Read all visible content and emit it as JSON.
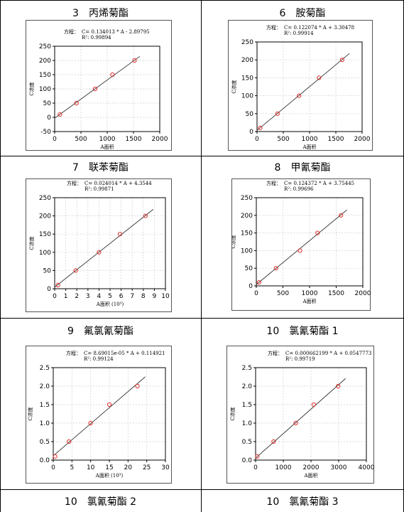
{
  "cells": [
    {
      "title": "3　丙烯菊酯",
      "chart_data": {
        "type": "scatter",
        "equation_prefix": "方程：",
        "equation": "C= 0.134013 * A - 2.89795",
        "r2": "R²: 0.99894",
        "xlabel": "A面积",
        "ylabel": "C浓度",
        "xlim": [
          0,
          2000
        ],
        "ylim": [
          -50,
          250
        ],
        "xticks": [
          0,
          500,
          1000,
          1500,
          2000
        ],
        "yticks": [
          -50,
          0,
          50,
          100,
          150,
          200,
          250
        ],
        "x": [
          100,
          415,
          770,
          1100,
          1520
        ],
        "y": [
          10,
          50,
          100,
          150,
          200
        ],
        "fit": {
          "slope": 0.134013,
          "intercept": -2.89795,
          "x_range": [
            0,
            1620
          ]
        },
        "grid": true
      }
    },
    {
      "title": "6　胺菊酯",
      "chart_data": {
        "type": "scatter",
        "equation_prefix": "方程：",
        "equation": "C= 0.122074 * A + 3.30478",
        "r2": "R²: 0.99914",
        "xlabel": "A面积",
        "ylabel": "C浓度",
        "xlim": [
          0,
          2000
        ],
        "ylim": [
          0,
          250
        ],
        "xticks": [
          0,
          500,
          1000,
          1500,
          2000
        ],
        "yticks": [
          0,
          50,
          100,
          150,
          200,
          250
        ],
        "x": [
          60,
          390,
          800,
          1180,
          1620
        ],
        "y": [
          10,
          50,
          100,
          150,
          200
        ],
        "fit": {
          "slope": 0.122074,
          "intercept": 3.30478,
          "x_range": [
            0,
            1760
          ]
        },
        "grid": true
      }
    },
    {
      "title": "7　联苯菊酯",
      "chart_data": {
        "type": "scatter",
        "equation_prefix": "方程：",
        "equation": "C= 0.024014 * A + 4.3544",
        "r2": "R²: 0.99871",
        "xlabel": "A面积 (10^3)",
        "ylabel": "C浓度",
        "xlim": [
          0,
          10
        ],
        "ylim": [
          0,
          250
        ],
        "xticks": [
          0,
          1,
          2,
          3,
          4,
          5,
          6,
          7,
          8,
          9,
          10
        ],
        "yticks": [
          0,
          50,
          100,
          150,
          200,
          250
        ],
        "x": [
          0.3,
          1.9,
          4.0,
          5.9,
          8.2
        ],
        "y": [
          10,
          50,
          100,
          150,
          200
        ],
        "fit": {
          "slope": 24.014,
          "intercept": 4.3544,
          "x_range": [
            0,
            8.9
          ]
        },
        "grid": true
      }
    },
    {
      "title": "8　甲氰菊酯",
      "chart_data": {
        "type": "scatter",
        "equation_prefix": "方程：",
        "equation": "C= 0.124372 * A + 3.75445",
        "r2": "R²: 0.99696",
        "xlabel": "A面积",
        "ylabel": "C浓度",
        "xlim": [
          0,
          2000
        ],
        "ylim": [
          0,
          250
        ],
        "xticks": [
          0,
          500,
          1000,
          1500,
          2000
        ],
        "yticks": [
          0,
          50,
          100,
          150,
          200,
          250
        ],
        "x": [
          50,
          370,
          820,
          1150,
          1590
        ],
        "y": [
          10,
          50,
          100,
          150,
          200
        ],
        "fit": {
          "slope": 0.124372,
          "intercept": 3.75445,
          "x_range": [
            0,
            1700
          ]
        },
        "grid": true
      }
    },
    {
      "title": "9　氟氯氰菊酯",
      "chart_data": {
        "type": "scatter",
        "equation_prefix": "方程：",
        "equation": "C= 8.69015e-05 * A + 0.114921",
        "r2": "R²: 0.99124",
        "xlabel": "A面积 (10^3)",
        "ylabel": "C浓度",
        "xlim": [
          0,
          30
        ],
        "ylim": [
          0,
          2.5
        ],
        "xticks": [
          0,
          5,
          10,
          15,
          20,
          25,
          30
        ],
        "yticks": [
          0.0,
          0.5,
          1.0,
          1.5,
          2.0,
          2.5
        ],
        "ytick_labels": [
          "0.0",
          "0.5",
          "1.0",
          "1.5",
          "2.0",
          "2.5"
        ],
        "x": [
          0.5,
          4.2,
          10.0,
          15.0,
          22.5
        ],
        "y": [
          0.1,
          0.5,
          1.0,
          1.5,
          2.0
        ],
        "fit": {
          "slope": 0.0869015,
          "intercept": 0.114921,
          "x_range": [
            0,
            24.6
          ]
        },
        "grid": true
      }
    },
    {
      "title": "10　氯氰菊酯 1",
      "chart_data": {
        "type": "scatter",
        "equation_prefix": "方程：",
        "equation": "C= 0.000662199 * A + 0.0547773",
        "r2": "R²: 0.99719",
        "xlabel": "A面积",
        "ylabel": "C浓度",
        "xlim": [
          0,
          4000
        ],
        "ylim": [
          0,
          2.5
        ],
        "xticks": [
          0,
          1000,
          2000,
          3000,
          4000
        ],
        "yticks": [
          0.0,
          0.5,
          1.0,
          1.5,
          2.0,
          2.5
        ],
        "ytick_labels": [
          "0.0",
          "0.5",
          "1.0",
          "1.5",
          "2.0",
          "2.5"
        ],
        "x": [
          60,
          650,
          1450,
          2100,
          2980
        ],
        "y": [
          0.1,
          0.5,
          1.0,
          1.5,
          2.0
        ],
        "fit": {
          "slope": 0.000662199,
          "intercept": 0.0547773,
          "x_range": [
            0,
            3250
          ]
        },
        "grid": true
      }
    },
    {
      "title": "10　氯氰菊酯 2"
    },
    {
      "title": "10　氯氰菊酯 3"
    }
  ]
}
